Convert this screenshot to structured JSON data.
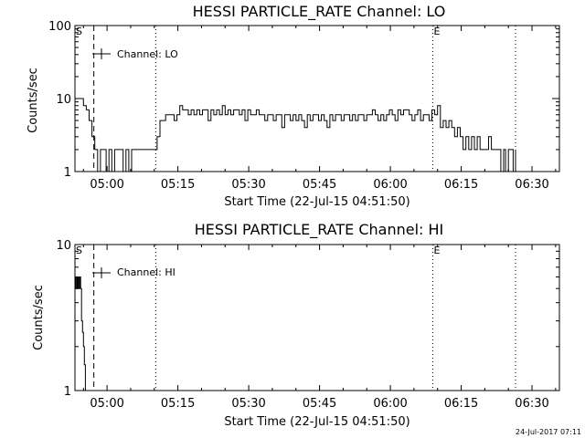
{
  "footer": {
    "timestamp": "24-Jul-2017 07:11"
  },
  "chart_data": [
    {
      "type": "line",
      "title": "HESSI PARTICLE_RATE Channel: LO",
      "xlabel": "Start Time (22-Jul-15 04:51:50)",
      "ylabel": "Counts/sec",
      "yscale": "log",
      "ylim": [
        1,
        100
      ],
      "xlim_minutes": [
        -6.8,
        95.8
      ],
      "yticks": [
        "1",
        "10",
        "100"
      ],
      "xticks": [
        {
          "label": "05:00",
          "min": 0
        },
        {
          "label": "05:15",
          "min": 15
        },
        {
          "label": "05:30",
          "min": 30
        },
        {
          "label": "05:45",
          "min": 45
        },
        {
          "label": "06:00",
          "min": 60
        },
        {
          "label": "06:15",
          "min": 75
        },
        {
          "label": "06:30",
          "min": 90
        }
      ],
      "legend": {
        "label": "Channel: LO",
        "position": "top-left"
      },
      "markers": [
        {
          "label": "S",
          "min": -6.8,
          "style": "none"
        },
        {
          "label": "",
          "min": -2.8,
          "style": "dashed"
        },
        {
          "label": "",
          "min": 10.3,
          "style": "dotted"
        },
        {
          "label": "E",
          "min": 69.0,
          "style": "dotted"
        },
        {
          "label": "",
          "min": 86.5,
          "style": "dotted"
        }
      ],
      "series": [
        {
          "name": "Channel: LO",
          "x": [
            -6.8,
            -6.2,
            -5.6,
            -5.0,
            -4.4,
            -3.8,
            -3.2,
            -2.6,
            -2.0,
            -1.4,
            -0.8,
            -0.2,
            0.4,
            1.0,
            1.6,
            2.2,
            2.8,
            3.4,
            4.0,
            4.6,
            5.2,
            5.8,
            6.4,
            7.0,
            7.6,
            8.2,
            8.8,
            9.4,
            10.0,
            10.6,
            11.2,
            11.8,
            12.4,
            13.0,
            13.6,
            14.2,
            14.8,
            15.4,
            16.0,
            16.6,
            17.2,
            17.8,
            18.4,
            19.0,
            19.6,
            20.2,
            20.8,
            21.4,
            22.0,
            22.6,
            23.2,
            23.8,
            24.4,
            25.0,
            25.6,
            26.2,
            26.8,
            27.4,
            28.0,
            28.6,
            29.2,
            29.8,
            30.4,
            31.0,
            31.6,
            32.2,
            32.8,
            33.4,
            34.0,
            34.6,
            35.2,
            35.8,
            36.4,
            37.0,
            37.6,
            38.2,
            38.8,
            39.4,
            40.0,
            40.6,
            41.2,
            41.8,
            42.4,
            43.0,
            43.6,
            44.2,
            44.8,
            45.4,
            46.0,
            46.6,
            47.2,
            47.8,
            48.4,
            49.0,
            49.6,
            50.2,
            50.8,
            51.4,
            52.0,
            52.6,
            53.2,
            53.8,
            54.4,
            55.0,
            55.6,
            56.2,
            56.8,
            57.4,
            58.0,
            58.6,
            59.2,
            59.8,
            60.4,
            61.0,
            61.6,
            62.2,
            62.8,
            63.4,
            64.0,
            64.6,
            65.2,
            65.8,
            66.4,
            67.0,
            67.6,
            68.2,
            68.8,
            69.4,
            70.0,
            70.6,
            71.2,
            71.8,
            72.4,
            73.0,
            73.6,
            74.2,
            74.8,
            75.4,
            76.0,
            76.6,
            77.2,
            77.8,
            78.4,
            79.0,
            79.6,
            80.2,
            80.8,
            81.4,
            82.0,
            82.6,
            83.0,
            83.4,
            84.0,
            84.4,
            85.0,
            85.4,
            86.0,
            86.5
          ],
          "y": [
            10,
            10,
            10,
            8,
            7,
            5,
            3,
            2,
            1,
            2,
            2,
            1,
            2,
            1,
            2,
            2,
            2,
            1,
            2,
            1,
            2,
            2,
            2,
            2,
            2,
            2,
            2,
            2,
            2,
            3,
            5,
            5,
            6,
            6,
            6,
            5,
            6,
            8,
            7,
            7,
            6,
            7,
            6,
            7,
            6,
            7,
            7,
            5,
            7,
            6,
            7,
            6,
            8,
            6,
            7,
            6,
            7,
            7,
            6,
            7,
            5,
            7,
            6,
            6,
            7,
            6,
            6,
            5,
            6,
            6,
            5,
            6,
            6,
            4,
            6,
            6,
            5,
            6,
            5,
            6,
            5,
            4,
            6,
            5,
            6,
            6,
            5,
            6,
            5,
            4,
            6,
            5,
            6,
            6,
            5,
            6,
            6,
            5,
            6,
            5,
            6,
            6,
            5,
            6,
            6,
            7,
            6,
            5,
            6,
            5,
            6,
            7,
            6,
            5,
            7,
            6,
            7,
            7,
            6,
            5,
            6,
            7,
            5,
            6,
            6,
            5,
            7,
            6,
            8,
            4,
            5,
            4,
            5,
            4,
            3,
            4,
            3,
            2,
            3,
            2,
            3,
            2,
            3,
            2,
            2,
            2,
            3,
            2,
            2,
            2,
            2,
            1,
            2,
            1,
            2,
            2,
            1,
            2
          ],
          "connect_below_axis": true
        }
      ]
    },
    {
      "type": "line",
      "title": "HESSI PARTICLE_RATE Channel: HI",
      "xlabel": "Start Time (22-Jul-15 04:51:50)",
      "ylabel": "Counts/sec",
      "yscale": "log",
      "ylim": [
        1,
        10
      ],
      "xlim_minutes": [
        -6.8,
        95.8
      ],
      "yticks": [
        "1",
        "10"
      ],
      "xticks": [
        {
          "label": "05:00",
          "min": 0
        },
        {
          "label": "05:15",
          "min": 15
        },
        {
          "label": "05:30",
          "min": 30
        },
        {
          "label": "05:45",
          "min": 45
        },
        {
          "label": "06:00",
          "min": 60
        },
        {
          "label": "06:15",
          "min": 75
        },
        {
          "label": "06:30",
          "min": 90
        }
      ],
      "legend": {
        "label": "Channel: HI",
        "position": "top-left"
      },
      "markers": [
        {
          "label": "S",
          "min": -6.8,
          "style": "none"
        },
        {
          "label": "",
          "min": -2.8,
          "style": "dashed"
        },
        {
          "label": "",
          "min": 10.3,
          "style": "dotted"
        },
        {
          "label": "E",
          "min": 69.0,
          "style": "dotted"
        },
        {
          "label": "",
          "min": 86.5,
          "style": "dotted"
        }
      ],
      "series": [
        {
          "name": "Channel: HI",
          "x": [
            -6.8,
            -6.6,
            -6.4,
            -6.2,
            -6.0,
            -5.8,
            -5.6,
            -5.4,
            -5.2,
            -5.0,
            -4.8,
            -4.6,
            -4.4
          ],
          "y": [
            5,
            6,
            5,
            6,
            5,
            6,
            5,
            3,
            2.5,
            2,
            1.5,
            1,
            1
          ],
          "connect_below_axis": false
        }
      ]
    }
  ]
}
